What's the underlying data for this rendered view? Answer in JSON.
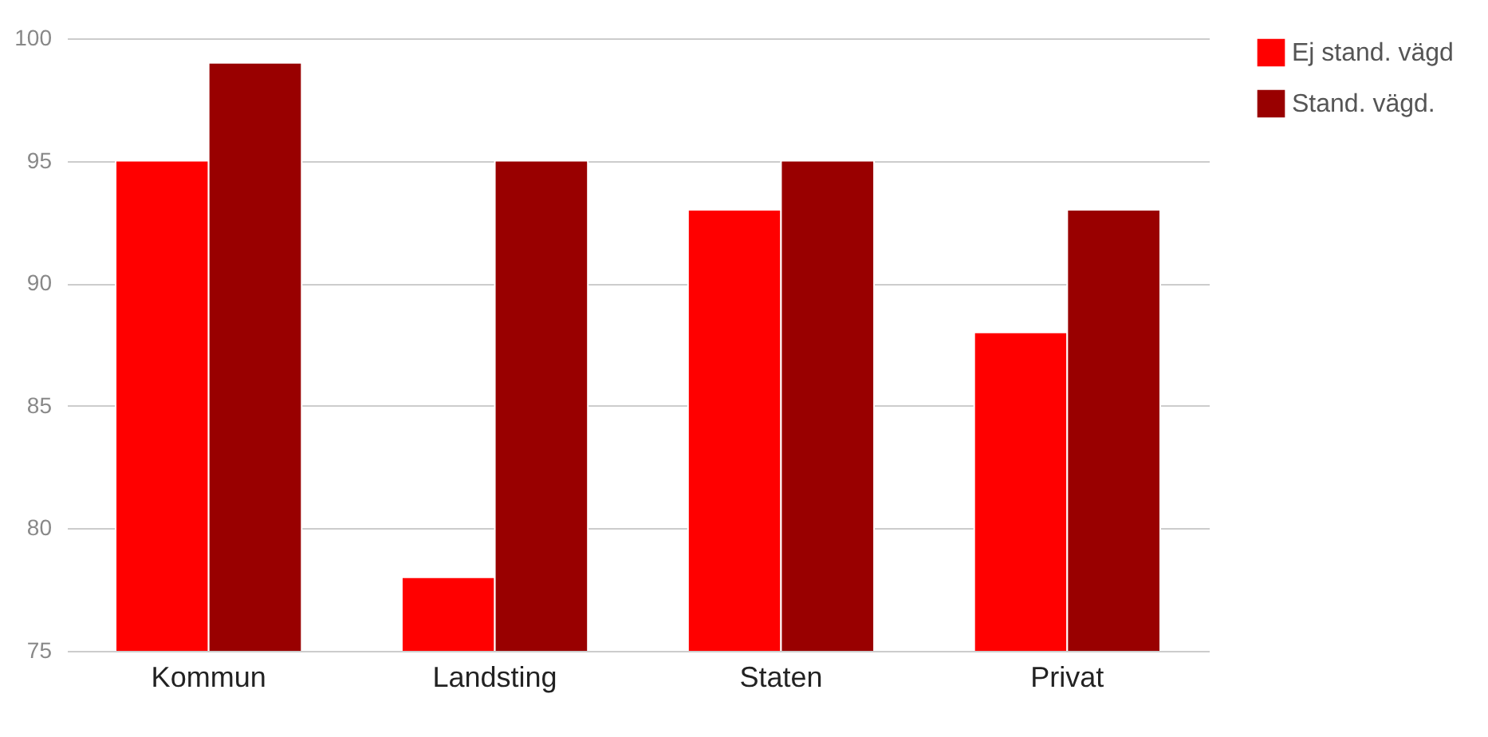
{
  "chart_data": {
    "type": "bar",
    "categories": [
      "Kommun",
      "Landsting",
      "Staten",
      "Privat"
    ],
    "series": [
      {
        "name": "Ej stand. vägd",
        "color": "#ff0000",
        "values": [
          95,
          78,
          93,
          88
        ]
      },
      {
        "name": "Stand. vägd.",
        "color": "#990000",
        "values": [
          99,
          95,
          95,
          93
        ]
      }
    ],
    "ylim": [
      75,
      100
    ],
    "yticks": [
      75,
      80,
      85,
      90,
      95,
      100
    ],
    "grid": "y",
    "legend": "top right"
  }
}
